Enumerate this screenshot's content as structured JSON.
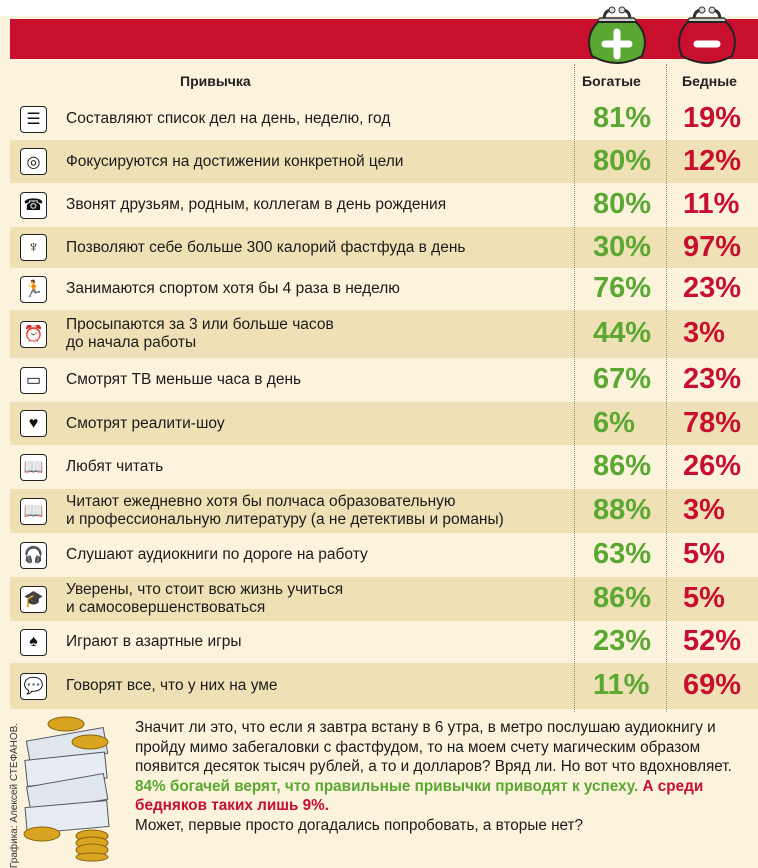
{
  "header": {
    "habit": "Привычка",
    "rich": "Богатые",
    "poor": "Бедные"
  },
  "colors": {
    "rich": "#5aa832",
    "poor": "#c8102e",
    "band": "#c8102e",
    "row_shade": "#efe0b6",
    "background": "#fbf3dc"
  },
  "chart_data": {
    "type": "table",
    "columns": [
      "Привычка",
      "Богатые",
      "Бедные"
    ],
    "series_colors": {
      "Богатые": "#5aa832",
      "Бедные": "#c8102e"
    },
    "rows": [
      {
        "icon": "checklist-icon",
        "habit": "Составляют список дел на день, неделю, год",
        "rich_label": "81%",
        "poor_label": "19%",
        "rich": 81,
        "poor": 19
      },
      {
        "icon": "target-icon",
        "habit": "Фокусируются на достижении конкретной цели",
        "rich_label": "80%",
        "poor_label": "12%",
        "rich": 80,
        "poor": 12
      },
      {
        "icon": "phone-icon",
        "habit": "Звонят друзьям, родным, коллегам в день рождения",
        "rich_label": "80%",
        "poor_label": "11%",
        "rich": 80,
        "poor": 11
      },
      {
        "icon": "fork-icon",
        "habit": "Позволяют себе больше 300 калорий фастфуда в день",
        "rich_label": "30%",
        "poor_label": "97%",
        "rich": 30,
        "poor": 97
      },
      {
        "icon": "runner-icon",
        "habit": "Занимаются спортом хотя бы 4 раза в неделю",
        "rich_label": "76%",
        "poor_label": "23%",
        "rich": 76,
        "poor": 23
      },
      {
        "icon": "alarm-clock-icon",
        "habit": "Просыпаются за 3 или больше часов\nдо начала работы",
        "rich_label": "44%",
        "poor_label": "3%",
        "rich": 44,
        "poor": 3
      },
      {
        "icon": "tv-icon",
        "habit": "Смотрят ТВ меньше часа в день",
        "rich_label": "67%",
        "poor_label": "23%",
        "rich": 67,
        "poor": 23
      },
      {
        "icon": "tv-heart-icon",
        "habit": "Смотрят реалити-шоу",
        "rich_label": "6%",
        "poor_label": "78%",
        "rich": 6,
        "poor": 78
      },
      {
        "icon": "book-icon",
        "habit": "Любят читать",
        "rich_label": "86%",
        "poor_label": "26%",
        "rich": 86,
        "poor": 26
      },
      {
        "icon": "book-icon",
        "habit": "Читают ежедневно хотя бы полчаса образовательную\nи профессиональную литературу (а не детективы и романы)",
        "rich_label": "88%",
        "poor_label": "3%",
        "rich": 88,
        "poor": 3
      },
      {
        "icon": "headphones-icon",
        "habit": "Слушают аудиокниги по дороге на работу",
        "rich_label": "63%",
        "poor_label": "5%",
        "rich": 63,
        "poor": 5
      },
      {
        "icon": "graduation-cap-icon",
        "habit": "Уверены, что стоит всю жизнь учиться\nи самосовершенствоваться",
        "rich_label": "86%",
        "poor_label": "5%",
        "rich": 86,
        "poor": 5
      },
      {
        "icon": "spade-icon",
        "habit": "Играют в азартные игры",
        "rich_label": "23%",
        "poor_label": "52%",
        "rich": 23,
        "poor": 52
      },
      {
        "icon": "speech-bubble-icon",
        "habit": "Говорят все, что у них на уме",
        "rich_label": "11%",
        "poor_label": "69%",
        "rich": 11,
        "poor": 69
      }
    ]
  },
  "note": {
    "part1": "Значит ли это, что если я завтра встану в 6 утра, в метро послушаю аудиокнигу и пройду мимо забегаловки с фастфудом, то на моем счету магическим образом появится десяток тысяч рублей, а то и долларов? Вряд ли. Но вот что вдохновляет. ",
    "rich_highlight": "84% богачей верят, что правильные привычки приводят к успеху.",
    "poor_highlight": " А среди бедняков таких лишь 9%.",
    "part2": "\nМожет, первые просто догадались попробовать, а вторые нет?"
  },
  "credit": "Графика: Алексей СТЕФАНОВ."
}
